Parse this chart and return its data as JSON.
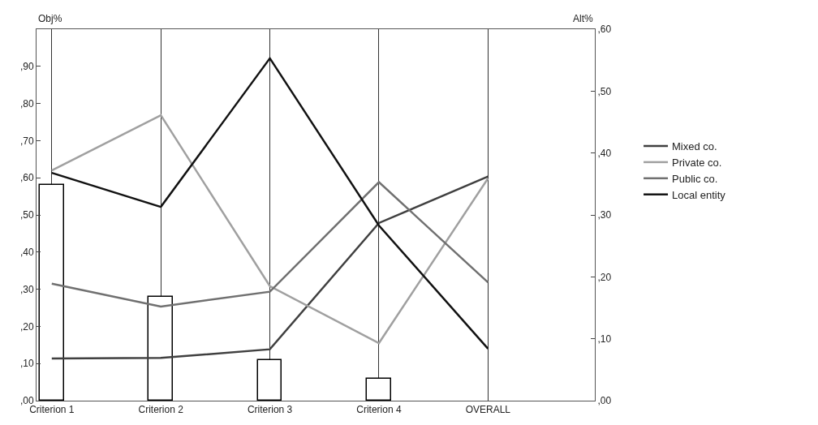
{
  "chart_data": {
    "type": "line",
    "ylabel": "Obj%",
    "y2label": "Alt%",
    "categories": [
      "Criterion 1",
      "Criterion 2",
      "Criterion 3",
      "Criterion 4",
      "OVERALL"
    ],
    "series": [
      {
        "type": "bar",
        "color": "#ffffff",
        "values": [
          58,
          28,
          11,
          6,
          null
        ]
      },
      {
        "name": "Mixed co.",
        "color": "#404040",
        "axis": "y2",
        "values": [
          6.8,
          6.9,
          8.3,
          28.7,
          36.2
        ]
      },
      {
        "name": "Private co.",
        "color": "#a0a0a0",
        "axis": "y2",
        "values": [
          37.2,
          46.1,
          18.5,
          9.3,
          35.9
        ]
      },
      {
        "name": "Public co.",
        "color": "#707070",
        "axis": "y2",
        "values": [
          18.9,
          15.2,
          17.6,
          35.3,
          19.1
        ]
      },
      {
        "name": "Local entity",
        "color": "#111111",
        "axis": "y2",
        "values": [
          36.8,
          31.3,
          55.3,
          28.3,
          8.4
        ]
      }
    ],
    "ylim": [
      0,
      100
    ],
    "yticks": [
      {
        "value": 0,
        "label": ",00"
      },
      {
        "value": 10,
        "label": ",10"
      },
      {
        "value": 20,
        "label": ",20"
      },
      {
        "value": 30,
        "label": ",30"
      },
      {
        "value": 40,
        "label": ",40"
      },
      {
        "value": 50,
        "label": ",50"
      },
      {
        "value": 60,
        "label": ",60"
      },
      {
        "value": 70,
        "label": ",70"
      },
      {
        "value": 80,
        "label": ",80"
      },
      {
        "value": 90,
        "label": ",90"
      }
    ],
    "y2lim": [
      0,
      60
    ],
    "y2ticks": [
      {
        "value": 0,
        "label": ",00"
      },
      {
        "value": 10,
        "label": ",10"
      },
      {
        "value": 20,
        "label": ",20"
      },
      {
        "value": 30,
        "label": ",30"
      },
      {
        "value": 40,
        "label": ",40"
      },
      {
        "value": 50,
        "label": ",50"
      },
      {
        "value": 60,
        "label": ",60"
      }
    ],
    "grid": "x",
    "legend": "right",
    "marker": "none",
    "line_style": "solid"
  }
}
